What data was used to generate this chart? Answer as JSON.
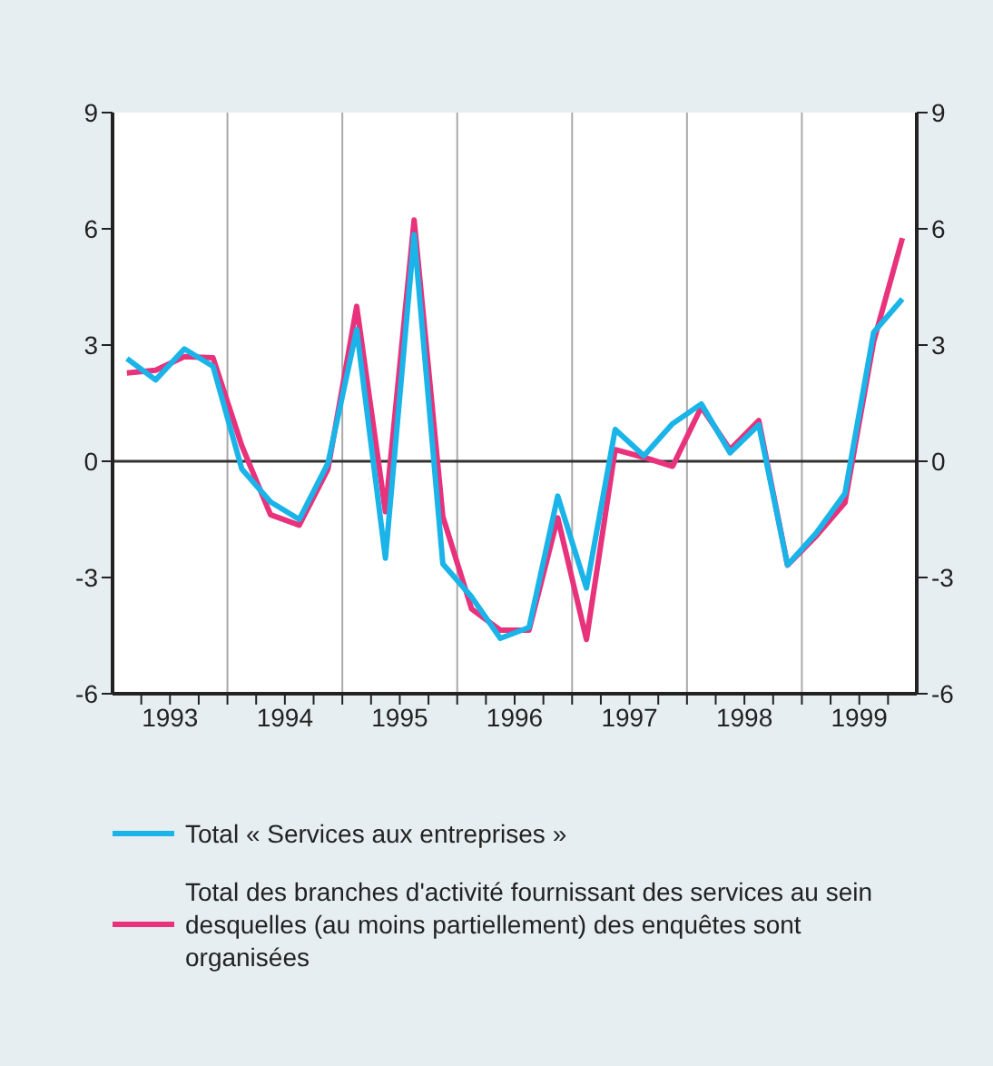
{
  "chart_data": {
    "type": "line",
    "x": [
      1993.125,
      1993.375,
      1993.625,
      1993.875,
      1994.125,
      1994.375,
      1994.625,
      1994.875,
      1995.125,
      1995.375,
      1995.625,
      1995.875,
      1996.125,
      1996.375,
      1996.625,
      1996.875,
      1997.125,
      1997.375,
      1997.625,
      1997.875,
      1998.125,
      1998.375,
      1998.625,
      1998.875,
      1999.125,
      1999.375,
      1999.625,
      1999.875
    ],
    "series": [
      {
        "name": "Total « Services aux entreprises »",
        "color": "#1ab4e8",
        "values": [
          2.65,
          2.1,
          2.9,
          2.45,
          -0.2,
          -1.05,
          -1.5,
          -0.05,
          3.4,
          -2.5,
          5.85,
          -2.65,
          -3.5,
          -4.57,
          -4.29,
          -0.9,
          -3.27,
          0.82,
          0.14,
          0.97,
          1.48,
          0.22,
          0.94,
          -2.68,
          -1.85,
          -0.83,
          3.33,
          4.19
        ]
      },
      {
        "name": "Total des branches d'activité fournissant des services au sein desquelles (au moins partiellement) des enquêtes sont organisées",
        "color": "#e8327c",
        "values": [
          2.28,
          2.35,
          2.7,
          2.67,
          0.4,
          -1.38,
          -1.65,
          -0.2,
          4.0,
          -1.3,
          6.23,
          -1.43,
          -3.81,
          -4.36,
          -4.36,
          -1.46,
          -4.6,
          0.3,
          0.1,
          -0.13,
          1.4,
          0.3,
          1.05,
          -2.68,
          -1.93,
          -1.07,
          3.09,
          5.76
        ]
      }
    ],
    "xlim": [
      1993,
      2000
    ],
    "xticks": [
      {
        "value": 1993.25,
        "label": null
      },
      {
        "value": 1993.5,
        "label": "1993"
      },
      {
        "value": 1993.75,
        "label": null
      },
      {
        "value": 1994,
        "label": null
      },
      {
        "value": 1994.25,
        "label": null
      },
      {
        "value": 1994.5,
        "label": "1994"
      },
      {
        "value": 1994.75,
        "label": null
      },
      {
        "value": 1995,
        "label": null
      },
      {
        "value": 1995.25,
        "label": null
      },
      {
        "value": 1995.5,
        "label": "1995"
      },
      {
        "value": 1995.75,
        "label": null
      },
      {
        "value": 1996,
        "label": null
      },
      {
        "value": 1996.25,
        "label": null
      },
      {
        "value": 1996.5,
        "label": "1996"
      },
      {
        "value": 1996.75,
        "label": null
      },
      {
        "value": 1997,
        "label": null
      },
      {
        "value": 1997.25,
        "label": null
      },
      {
        "value": 1997.5,
        "label": "1997"
      },
      {
        "value": 1997.75,
        "label": null
      },
      {
        "value": 1998,
        "label": null
      },
      {
        "value": 1998.25,
        "label": null
      },
      {
        "value": 1998.5,
        "label": "1998"
      },
      {
        "value": 1998.75,
        "label": null
      },
      {
        "value": 1999,
        "label": null
      },
      {
        "value": 1999.25,
        "label": null
      },
      {
        "value": 1999.5,
        "label": "1999"
      },
      {
        "value": 1999.75,
        "label": null
      }
    ],
    "ylim": [
      -6,
      9
    ],
    "yticks": [
      -6,
      -3,
      0,
      3,
      6,
      9
    ],
    "y2lim": [
      -6,
      9
    ],
    "y2ticks": [
      -6,
      -3,
      0,
      3,
      6,
      9
    ],
    "ref_lines": [
      {
        "axis": "x",
        "value": 1994,
        "color": "#aaaaaa"
      },
      {
        "axis": "x",
        "value": 1995,
        "color": "#aaaaaa"
      },
      {
        "axis": "x",
        "value": 1996,
        "color": "#aaaaaa"
      },
      {
        "axis": "x",
        "value": 1997,
        "color": "#aaaaaa"
      },
      {
        "axis": "x",
        "value": 1998,
        "color": "#aaaaaa"
      },
      {
        "axis": "x",
        "value": 1999,
        "color": "#aaaaaa"
      },
      {
        "axis": "y",
        "value": 0,
        "color": "#333333"
      }
    ],
    "legend": "bottom",
    "marker": "none",
    "line_style": "solid"
  }
}
